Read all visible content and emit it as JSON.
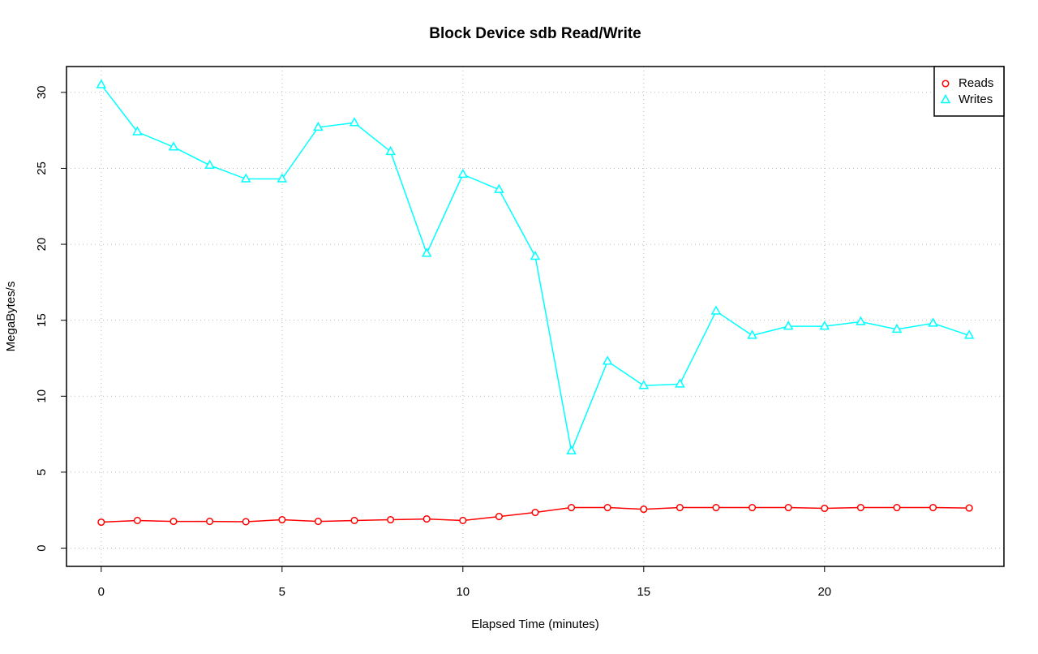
{
  "chart_data": {
    "type": "line",
    "title": "Block Device sdb Read/Write",
    "x_label": "Elapsed Time (minutes)",
    "y_label": "MegaBytes/s",
    "x": [
      0,
      1,
      2,
      3,
      4,
      5,
      6,
      7,
      8,
      9,
      10,
      11,
      12,
      13,
      14,
      15,
      16,
      17,
      18,
      19,
      20,
      21,
      22,
      23,
      24
    ],
    "series": [
      {
        "name": "Reads",
        "color": "#ff0000",
        "marker": "circle",
        "values": [
          1.71,
          1.82,
          1.76,
          1.76,
          1.74,
          1.87,
          1.76,
          1.82,
          1.87,
          1.92,
          1.82,
          2.08,
          2.35,
          2.67,
          2.67,
          2.56,
          2.67,
          2.67,
          2.67,
          2.67,
          2.62,
          2.67,
          2.67,
          2.67,
          2.64
        ]
      },
      {
        "name": "Writes",
        "color": "#00ffff",
        "marker": "triangle",
        "values": [
          30.5,
          27.4,
          26.4,
          25.2,
          24.3,
          24.3,
          27.7,
          28.0,
          26.1,
          19.4,
          24.6,
          23.6,
          19.2,
          6.4,
          12.3,
          10.7,
          10.8,
          15.6,
          14.0,
          14.6,
          14.6,
          14.9,
          14.4,
          14.8,
          14.0
        ]
      }
    ],
    "xlim": [
      -0.96,
      24.96
    ],
    "xticks": [
      0,
      5,
      10,
      15,
      20
    ],
    "ylim": [
      -1.2,
      31.7
    ],
    "yticks": [
      0,
      5,
      10,
      15,
      20,
      25,
      30
    ],
    "grid": true,
    "legend": "top-right"
  }
}
